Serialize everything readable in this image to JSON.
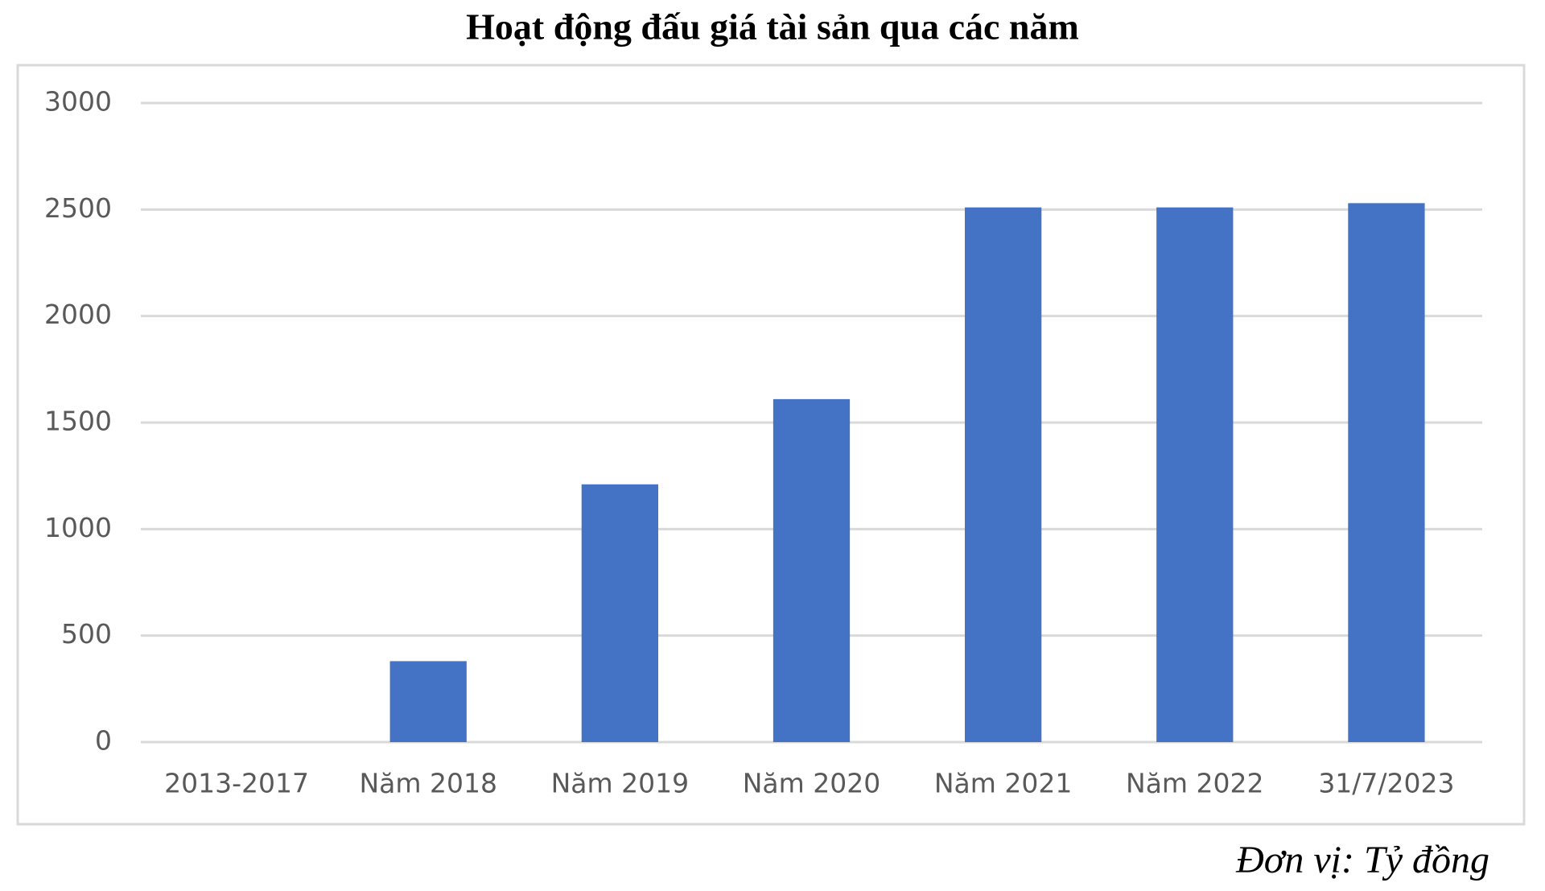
{
  "chart_data": {
    "type": "bar",
    "title": "Hoạt động đấu giá tài sản qua các năm",
    "categories": [
      "2013-2017",
      "Năm 2018",
      "Năm 2019",
      "Năm 2020",
      "Năm 2021",
      "Năm 2022",
      "31/7/2023"
    ],
    "values": [
      0,
      380,
      1210,
      1610,
      2510,
      2510,
      2530
    ],
    "color": "#4472c4",
    "ylim": [
      0,
      3000
    ],
    "yticks": [
      0,
      500,
      1000,
      1500,
      2000,
      2500,
      3000
    ],
    "grid": true,
    "note": "Đơn vị: Tỷ đồng"
  }
}
